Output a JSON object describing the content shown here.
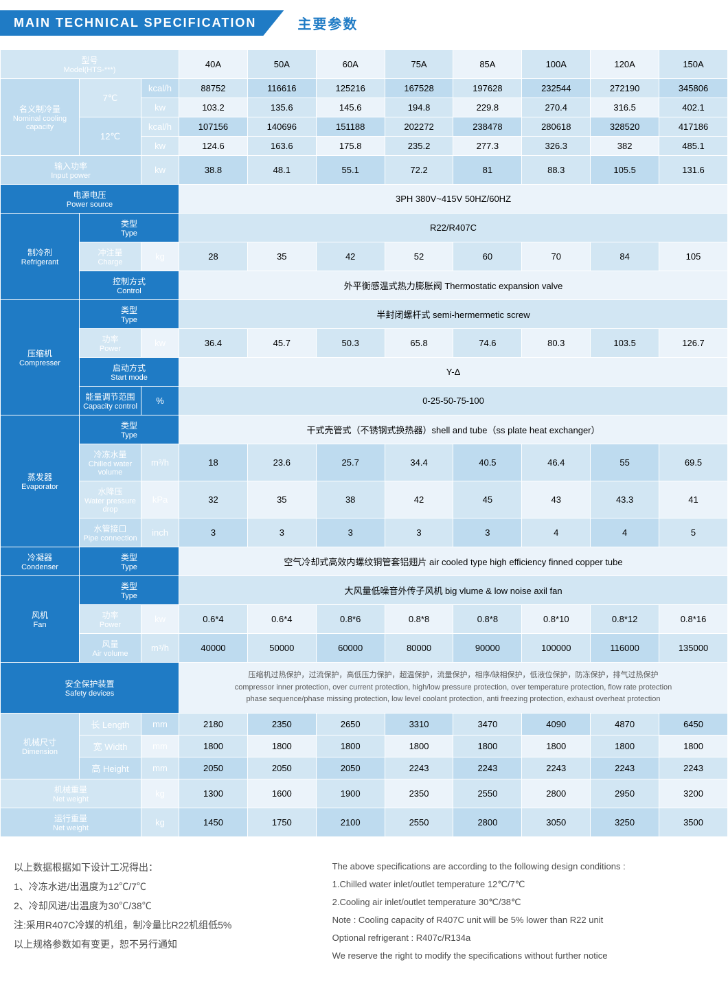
{
  "header": {
    "en": "MAIN  TECHNICAL  SPECIFICATION",
    "cn": "主要参数"
  },
  "colors": {
    "brand": "#1f7bc5",
    "row_light_odd": "#d2e6f3",
    "row_light_even": "#ebf3fa",
    "row_dark_odd": "#bedbef",
    "row_dark_even": "#d2e6f3"
  },
  "models": [
    "40A",
    "50A",
    "60A",
    "75A",
    "85A",
    "100A",
    "120A",
    "150A"
  ],
  "model_label": {
    "cn": "型号",
    "en": "Model(HTS-***)"
  },
  "ncc": {
    "cn": "名义制冷量",
    "en": "Nominal cooling capacity"
  },
  "t7": "7℃",
  "t12": "12℃",
  "u_kcalh": "kcal/h",
  "u_kw": "kw",
  "u_kg": "kg",
  "u_m3h": "m³/h",
  "u_kpa": "kPa",
  "u_inch": "inch",
  "u_pct": "%",
  "u_mm": "mm",
  "ncc_7_kcalh": [
    "88752",
    "116616",
    "125216",
    "167528",
    "197628",
    "232544",
    "272190",
    "345806"
  ],
  "ncc_7_kw": [
    "103.2",
    "135.6",
    "145.6",
    "194.8",
    "229.8",
    "270.4",
    "316.5",
    "402.1"
  ],
  "ncc_12_kcalh": [
    "107156",
    "140696",
    "151188",
    "202272",
    "238478",
    "280618",
    "328520",
    "417186"
  ],
  "ncc_12_kw": [
    "124.6",
    "163.6",
    "175.8",
    "235.2",
    "277.3",
    "326.3",
    "382",
    "485.1"
  ],
  "input_power": {
    "cn": "输入功率",
    "en": "Input power"
  },
  "input_power_vals": [
    "38.8",
    "48.1",
    "55.1",
    "72.2",
    "81",
    "88.3",
    "105.5",
    "131.6"
  ],
  "power_source": {
    "cn": "电源电压",
    "en": "Power source",
    "val": "3PH 380V~415V 50HZ/60HZ"
  },
  "refrigerant": {
    "cn": "制冷剂",
    "en": "Refrigerant"
  },
  "type": {
    "cn": "类型",
    "en": "Type"
  },
  "charge": {
    "cn": "冲注量",
    "en": "Charge"
  },
  "control": {
    "cn": "控制方式",
    "en": "Control"
  },
  "refrigerant_type": "R22/R407C",
  "refrigerant_charge": [
    "28",
    "35",
    "42",
    "52",
    "60",
    "70",
    "84",
    "105"
  ],
  "refrigerant_control": "外平衡感温式热力膨胀阀 Thermostatic expansion valve",
  "compressor": {
    "cn": "压缩机",
    "en": "Compresser"
  },
  "compressor_type": "半封闭螺杆式 semi-hermermetic screw",
  "power_l": {
    "cn": "功率",
    "en": "Power"
  },
  "compressor_power": [
    "36.4",
    "45.7",
    "50.3",
    "65.8",
    "74.6",
    "80.3",
    "103.5",
    "126.7"
  ],
  "start_mode": {
    "cn": "启动方式",
    "en": "Start mode"
  },
  "start_mode_val": "Y-Δ",
  "cap_ctrl": {
    "cn": "能量调节范围",
    "en": "Capacity control"
  },
  "cap_ctrl_val": "0-25-50-75-100",
  "evaporator": {
    "cn": "蒸发器",
    "en": "Evaporator"
  },
  "evap_type": "干式壳管式（不锈钢式换热器）shell and tube（ss plate heat exchanger）",
  "cwv": {
    "cn": "冷冻水量",
    "en": "Chilled water volume"
  },
  "cwv_vals": [
    "18",
    "23.6",
    "25.7",
    "34.4",
    "40.5",
    "46.4",
    "55",
    "69.5"
  ],
  "wpd": {
    "cn": "水降压",
    "en": "Water pressure drop"
  },
  "wpd_vals": [
    "32",
    "35",
    "38",
    "42",
    "45",
    "43",
    "43.3",
    "41"
  ],
  "pipe": {
    "cn": "水管接口",
    "en": "Pipe connection"
  },
  "pipe_vals": [
    "3",
    "3",
    "3",
    "3",
    "3",
    "4",
    "4",
    "5"
  ],
  "condenser": {
    "cn": "冷凝器",
    "en": "Condenser"
  },
  "condenser_type": "空气冷却式高效内螺纹铜管套铝翅片 air cooled type high  efficiency finned copper tube",
  "fan": {
    "cn": "风机",
    "en": "Fan"
  },
  "fan_type": "大风量低噪音外传子风机 big vlume & low noise axil fan",
  "fan_power": [
    "0.6*4",
    "0.6*4",
    "0.8*6",
    "0.8*8",
    "0.8*8",
    "0.8*10",
    "0.8*12",
    "0.8*16"
  ],
  "air_vol": {
    "cn": "风量",
    "en": "Air volume"
  },
  "air_vol_vals": [
    "40000",
    "50000",
    "60000",
    "80000",
    "90000",
    "100000",
    "116000",
    "135000"
  ],
  "safety": {
    "cn": "安全保护装置",
    "en": "Safety devices"
  },
  "safety_cn": "压缩机过热保护，过流保护，高低压力保护，超温保护，流量保护，相序/缺相保护，低液位保护，防冻保护，排气过热保护",
  "safety_en1": "compressor inner protection, over current protection, high/low pressure protection, over temperature protection, flow rate protection",
  "safety_en2": "phase sequence/phase missing protection, low level coolant protection, anti freezing protection, exhaust overheat protection",
  "dim": {
    "cn": "机械尺寸",
    "en": "Dimension"
  },
  "length": "长 Length",
  "width": "宽 Width",
  "height": "高 Height",
  "length_vals": [
    "2180",
    "2350",
    "2650",
    "3310",
    "3470",
    "4090",
    "4870",
    "6450"
  ],
  "width_vals": [
    "1800",
    "1800",
    "1800",
    "1800",
    "1800",
    "1800",
    "1800",
    "1800"
  ],
  "height_vals": [
    "2050",
    "2050",
    "2050",
    "2243",
    "2243",
    "2243",
    "2243",
    "2243"
  ],
  "netw": {
    "cn": "机械重量",
    "en": "Net weight"
  },
  "netw_vals": [
    "1300",
    "1600",
    "1900",
    "2350",
    "2550",
    "2800",
    "2950",
    "3200"
  ],
  "runw": {
    "cn": "运行重量",
    "en": "Net weight"
  },
  "runw_vals": [
    "1450",
    "1750",
    "2100",
    "2550",
    "2800",
    "3050",
    "3250",
    "3500"
  ],
  "notes_left": [
    "以上数据根据如下设计工况得出：",
    "1、冷冻水进/出温度为12℃/7℃",
    "2、冷却风进/出温度为30℃/38℃",
    "注:采用R407C冷媒的机组，制冷量比R22机组低5%",
    "以上规格参数如有变更，恕不另行通知"
  ],
  "notes_right": [
    "The above specifications are according to the following design conditions :",
    "1.Chilled water inlet/outlet temperature 12℃/7℃",
    "2.Cooling air inlet/outlet temperature 30℃/38℃",
    "Note : Cooling capacity of R407C unit will be 5% lower than R22 unit",
    "Optional refrigerant : R407c/R134a",
    "We reserve the right to modify the specifications without further notice"
  ]
}
